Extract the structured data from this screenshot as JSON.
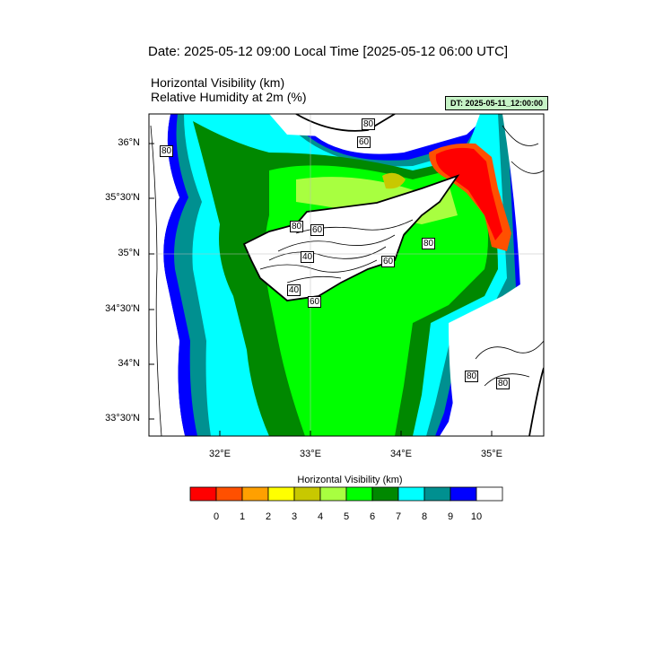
{
  "header": {
    "date_line": "Date: 2025-05-12  09:00 Local Time [2025-05-12  06:00 UTC]",
    "field1": "Horizontal Visibility   (km)",
    "field2": "Relative Humidity at 2m   (%)",
    "dt_badge": "DT: 2025-05-11_12:00:00"
  },
  "map": {
    "lat_ticks": [
      "36°N",
      "35°30'N",
      "35°N",
      "34°30'N",
      "34°N",
      "33°30'N"
    ],
    "lon_ticks": [
      "32°E",
      "33°E",
      "34°E",
      "35°E"
    ],
    "contour_labels": [
      "80",
      "80",
      "60",
      "80",
      "60",
      "80",
      "40",
      "60",
      "40",
      "60",
      "80",
      "80"
    ]
  },
  "colorbar": {
    "title": "Horizontal Visibility  (km)",
    "labels": [
      "0",
      "1",
      "2",
      "3",
      "4",
      "5",
      "6",
      "7",
      "8",
      "9",
      "10"
    ],
    "colors": [
      "#ff0000",
      "#ff5000",
      "#ffa000",
      "#ffff00",
      "#c8c800",
      "#a8ff40",
      "#00ff00",
      "#008800",
      "#00ffff",
      "#009090",
      "#0000ff",
      "#ffffff"
    ]
  }
}
